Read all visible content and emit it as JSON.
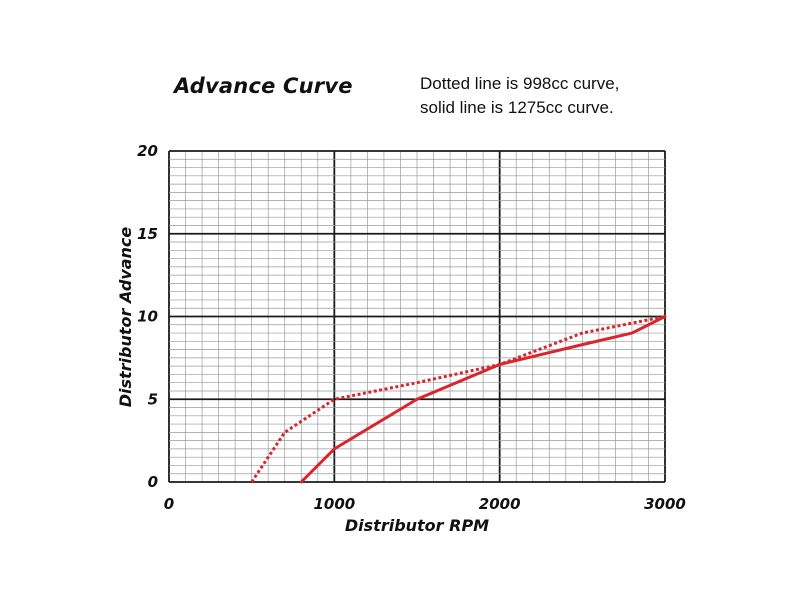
{
  "chart_data": {
    "type": "line",
    "title": "Advance Curve",
    "annotation_lines": [
      "Dotted line is 998cc curve,",
      "solid line is 1275cc curve."
    ],
    "xlabel": "Distributor RPM",
    "ylabel": "Distributor Advance",
    "xlim": [
      0,
      3000
    ],
    "ylim": [
      0,
      20
    ],
    "x_ticks": [
      0,
      1000,
      2000,
      3000
    ],
    "y_ticks": [
      0,
      5,
      10,
      15,
      20
    ],
    "grid": true,
    "line_color": "#d8262e",
    "series": [
      {
        "style": "dotted",
        "x": [
          500,
          700,
          1000,
          1500,
          2000,
          2500,
          3000
        ],
        "y": [
          0,
          3,
          5,
          6,
          7.1,
          9,
          10
        ]
      },
      {
        "style": "solid",
        "x": [
          800,
          1000,
          1500,
          2000,
          2500,
          2800,
          3000
        ],
        "y": [
          0,
          2,
          5,
          7.1,
          8.3,
          9,
          10
        ]
      }
    ]
  }
}
